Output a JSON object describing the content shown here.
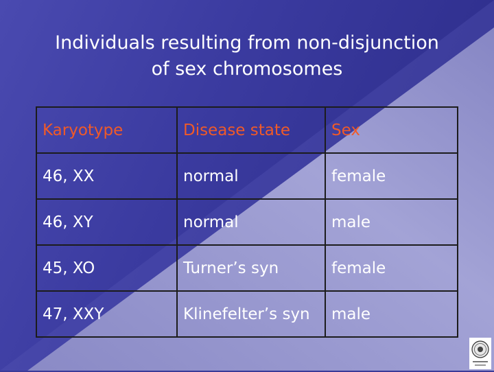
{
  "slide": {
    "title_line1": "Individuals resulting from non-disjunction",
    "title_line2": "of sex chromosomes"
  },
  "table": {
    "headers": [
      "Karyotype",
      "Disease state",
      "Sex"
    ],
    "rows": [
      [
        "46, XX",
        "normal",
        "female"
      ],
      [
        "46, XY",
        "normal",
        "male"
      ],
      [
        "45, XO",
        "Turner’s syn",
        "female"
      ],
      [
        "47, XXY",
        "Klinefelter’s syn",
        "male"
      ]
    ]
  },
  "colors": {
    "background_dark": "#34349a",
    "background_light": "#9a9ad2",
    "header_text": "#f05a28",
    "body_text": "#ffffff",
    "grid_lines": "#1c1c1c"
  },
  "icons": {
    "corner_logo": "university-seal-icon"
  }
}
